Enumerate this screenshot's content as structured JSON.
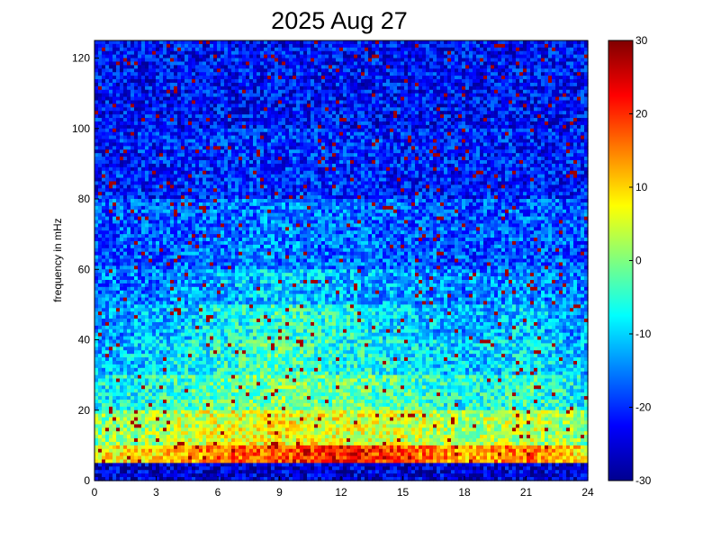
{
  "chart_data": {
    "type": "heatmap",
    "title": "2025 Aug 27",
    "xlabel": "",
    "ylabel": "frequency in mHz",
    "xlim": [
      0,
      24
    ],
    "ylim": [
      0,
      125
    ],
    "x_ticks": [
      0,
      3,
      6,
      9,
      12,
      15,
      18,
      21,
      24
    ],
    "y_ticks": [
      0,
      20,
      40,
      60,
      80,
      100,
      120
    ],
    "colorbar": {
      "range": [
        -30,
        30
      ],
      "ticks": [
        -30,
        -20,
        -10,
        0,
        10,
        20,
        30
      ],
      "colormap": "jet"
    },
    "grid": false,
    "approx_power_db_by_band": {
      "frequency_bands_mhz": [
        0,
        5,
        10,
        20,
        30,
        40,
        50,
        60,
        80,
        100,
        125
      ],
      "time_hours": [
        0,
        3,
        6,
        9,
        12,
        15,
        18,
        21,
        24
      ],
      "values": [
        [
          -25,
          -25,
          -25,
          -25,
          -25,
          -25,
          -25,
          -25,
          -25
        ],
        [
          8,
          10,
          16,
          18,
          22,
          18,
          12,
          16,
          8
        ],
        [
          0,
          2,
          6,
          8,
          6,
          5,
          2,
          4,
          0
        ],
        [
          -8,
          -6,
          -2,
          0,
          -2,
          -3,
          -7,
          -4,
          -8
        ],
        [
          -12,
          -10,
          -6,
          -2,
          -6,
          -8,
          -11,
          -8,
          -12
        ],
        [
          -14,
          -12,
          -8,
          -4,
          -6,
          -10,
          -13,
          -10,
          -14
        ],
        [
          -16,
          -15,
          -12,
          -10,
          -12,
          -13,
          -15,
          -14,
          -16
        ],
        [
          -18,
          -17,
          -16,
          -15,
          -16,
          -17,
          -18,
          -17,
          -18
        ],
        [
          -21,
          -21,
          -20,
          -20,
          -20,
          -21,
          -21,
          -21,
          -21
        ],
        [
          -22,
          -22,
          -22,
          -22,
          -22,
          -22,
          -22,
          -22,
          -22
        ]
      ]
    }
  }
}
